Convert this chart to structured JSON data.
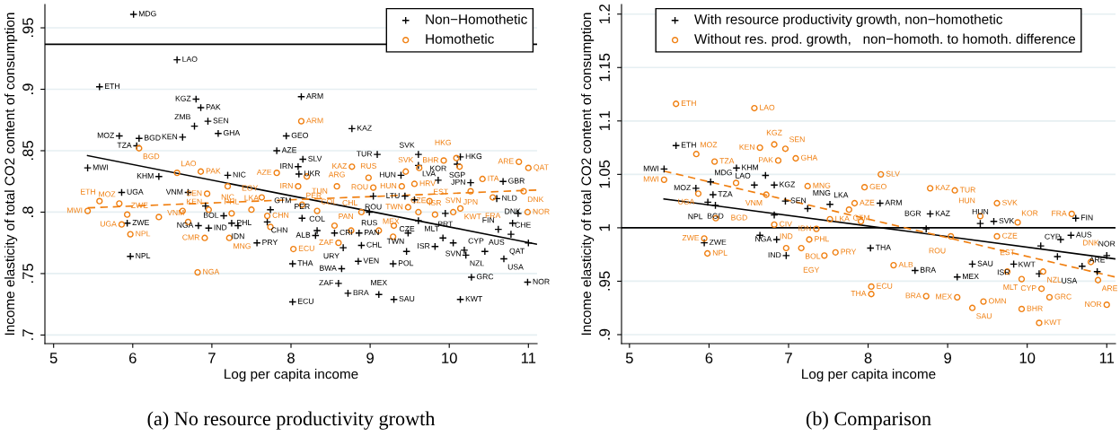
{
  "chart_data": [
    {
      "type": "scatter",
      "title": "(a) No resource productivity growth",
      "xlabel": "Log per capita income",
      "ylabel": "Income elasticity of total CO2 content of consumption",
      "xlim": [
        4.89,
        11.11
      ],
      "xticks": [
        5,
        6,
        7,
        8,
        9,
        10,
        11
      ],
      "ylim": [
        0.693,
        0.969
      ],
      "yticks": [
        {
          "value": 0.7,
          "label": ".7"
        },
        {
          "value": 0.75,
          "label": ".75"
        },
        {
          "value": 0.8,
          "label": ".8"
        },
        {
          "value": 0.85,
          "label": ".85"
        },
        {
          "value": 0.9,
          "label": ".9"
        },
        {
          "value": 0.95,
          "label": ".95"
        }
      ],
      "grid": "y",
      "legend": "top right",
      "ref_lines": [
        {
          "axis": "y",
          "value": 0.9366,
          "color": "#000000"
        }
      ],
      "series": [
        {
          "name": "Non−Homothetic",
          "marker": "cross",
          "color": "#000000",
          "x": [
            6.01,
            6.56,
            5.58,
            6.8,
            6.86,
            6.95,
            6.78,
            7.08,
            5.83,
            6.08,
            6.63,
            6.05,
            5.43,
            6.33,
            7.2,
            5.86,
            6.7,
            5.93,
            5.97,
            6.92,
            7.15,
            6.83,
            6.96,
            7.25,
            7.33,
            7.57,
            7.7,
            7.74,
            7.94,
            7.82,
            8.02,
            8.02,
            8.13,
            8.77,
            8.15,
            9.09,
            9.61,
            9.61,
            8.09,
            8.1,
            9.39,
            9.86,
            10.14,
            10.1,
            10.27,
            10.68,
            10.6,
            9.04,
            9.44,
            9.56,
            8.99,
            9.95,
            9.61,
            10.87,
            10.8,
            11.0,
            10.62,
            10.78,
            9.48,
            9.92,
            10.05,
            9.82,
            10.19,
            10.21,
            10.45,
            9.46,
            10.69,
            8.66,
            8.89,
            8.85,
            9.29,
            8.64,
            8.6,
            8.72,
            9.11,
            9.3,
            10.14,
            10.28,
            10.99,
            8.14,
            8.86,
            8.33,
            8.31,
            8.55
          ],
          "values": [
            0.961,
            0.924,
            0.902,
            0.892,
            0.885,
            0.874,
            0.87,
            0.864,
            0.862,
            0.86,
            0.861,
            0.854,
            0.836,
            0.829,
            0.83,
            0.816,
            0.816,
            0.791,
            0.764,
            0.805,
            0.797,
            0.789,
            0.787,
            0.791,
            0.789,
            0.775,
            0.792,
            0.802,
            0.862,
            0.85,
            0.727,
            0.758,
            0.894,
            0.868,
            0.843,
            0.847,
            0.847,
            0.838,
            0.837,
            0.831,
            0.83,
            0.826,
            0.845,
            0.839,
            0.824,
            0.825,
            0.811,
            0.813,
            0.813,
            0.81,
            0.8,
            0.799,
            0.793,
            0.799,
            0.791,
            0.775,
            0.786,
            0.782,
            0.783,
            0.779,
            0.775,
            0.772,
            0.769,
            0.765,
            0.768,
            0.768,
            0.762,
            0.771,
            0.773,
            0.76,
            0.758,
            0.754,
            0.742,
            0.734,
            0.733,
            0.729,
            0.729,
            0.747,
            0.743,
            0.795,
            0.783,
            0.785,
            0.781,
            0.783
          ],
          "value_labels": [
            "MDG",
            "LAO",
            "ETH",
            "KGZ",
            "PAK",
            "SEN",
            "ZMB",
            "GHA",
            "MOZ",
            "BGD",
            "KEN",
            "TZA",
            "MWI",
            "KHM",
            "NIC",
            "UGA",
            "VNM",
            "ZWE",
            "NPL",
            null,
            "BOL",
            "NGA",
            "IND",
            "PHL",
            "IDN",
            "PRY",
            "CHN",
            "GTM",
            "GEO",
            "AZE",
            "ECU",
            "THA",
            "ARM",
            "KAZ",
            "SLV",
            "TUR",
            "SVK",
            "LVA",
            "IRN",
            "UKR",
            "HUN",
            "KOR",
            "HKG",
            "SGP",
            "JPN",
            "GBR",
            "NLD",
            "ROU",
            "LTU",
            null,
            "RUS",
            "PRT",
            "CZE",
            null,
            "DNK",
            "QAT",
            "FIN",
            "CHE",
            "TWN",
            "MLT",
            "SVN",
            "ISR",
            "CYP",
            "NZL",
            "AUS",
            null,
            "USA",
            "URY",
            "CHL",
            "VEN",
            "POL",
            "BWA",
            "ZAF",
            "BRA",
            "MEX",
            "SAU",
            "KWT",
            "GRC",
            "NOR",
            "PER",
            "PAN",
            "COL",
            "ALB",
            "CRI"
          ]
        },
        {
          "name": "Homothetic",
          "marker": "circle",
          "color": "#f07f10",
          "x": [
            6.08,
            5.58,
            5.43,
            5.83,
            5.93,
            5.86,
            5.97,
            6.33,
            6.63,
            6.7,
            6.91,
            7.22,
            6.82,
            6.56,
            6.86,
            6.94,
            7.2,
            6.96,
            7.25,
            7.5,
            7.7,
            7.74,
            7.82,
            7.63,
            8.13,
            8.77,
            8.03,
            8.2,
            8.09,
            8.58,
            8.98,
            9.04,
            9.4,
            9.56,
            9.62,
            9.45,
            9.93,
            10.09,
            10.13,
            10.42,
            10.27,
            10.55,
            10.94,
            10.88,
            11.0,
            10.99,
            9.75,
            9.48,
            9.61,
            9.82,
            10.14,
            10.05,
            9.3,
            9.29,
            9.11,
            8.6,
            8.89,
            8.14,
            8.33,
            8.76,
            8.55
          ],
          "values": [
            0.852,
            0.809,
            0.801,
            0.807,
            0.798,
            0.79,
            0.782,
            0.796,
            0.801,
            0.792,
            0.779,
            0.779,
            0.751,
            0.832,
            0.833,
            0.815,
            0.821,
            0.802,
            0.799,
            0.802,
            0.797,
            0.788,
            0.832,
            0.812,
            0.874,
            0.837,
            0.77,
            0.829,
            0.821,
            0.821,
            0.828,
            0.82,
            0.821,
            0.823,
            0.836,
            0.833,
            0.842,
            0.844,
            0.837,
            0.827,
            0.817,
            0.812,
            0.817,
            0.841,
            0.836,
            0.8,
            0.809,
            0.804,
            0.8,
            0.798,
            0.803,
            0.8,
            0.789,
            0.78,
            0.785,
            0.775,
            0.8,
            0.806,
            0.801,
            0.785,
            0.789
          ],
          "value_labels": [
            "BGD",
            "ETH",
            "MWI",
            "MOZ",
            "ZWE",
            "UGA",
            "NPL",
            null,
            "KEN",
            "VNM",
            "CMR",
            "MNG",
            "NGA",
            "LAO",
            "PAK",
            "SEN",
            "NIC",
            null,
            "PHL",
            "LKA",
            "CHN",
            null,
            "AZE",
            "EGY",
            "ARM",
            "KAZ",
            "ECU",
            "TUN",
            "IRN",
            "ARG",
            "RUS",
            "ROU",
            "HUN",
            "HRV",
            null,
            "SVK",
            "BHR",
            "HKG",
            null,
            "ITA",
            "JPN",
            "FRA",
            "DNK",
            "ARE",
            "QAT",
            "NOR",
            "EST",
            "TWN",
            "CZE",
            "ISR",
            "KWT",
            "SVN",
            null,
            null,
            "MEX",
            "ZAF",
            "CHL",
            "PER",
            "COL",
            null,
            "PAN"
          ]
        },
        {
          "type": "line",
          "line_style": "solid",
          "color": "#000000",
          "x": [
            5.43,
            11.1
          ],
          "values": [
            0.846,
            0.774
          ]
        },
        {
          "type": "line",
          "line_style": "dashed",
          "color": "#f07f10",
          "x": [
            5.43,
            11.1
          ],
          "values": [
            0.8035,
            0.818
          ]
        }
      ]
    },
    {
      "type": "scatter",
      "title": "(b) Comparison",
      "xlabel": "Log per capita income",
      "ylabel": "Income elasticity of total CO2 content of consumption",
      "xlim": [
        4.9,
        11.11
      ],
      "xticks": [
        5,
        6,
        7,
        8,
        9,
        10,
        11
      ],
      "ylim": [
        0.8916,
        1.209
      ],
      "yticks": [
        {
          "value": 0.9,
          "label": ".9"
        },
        {
          "value": 0.95,
          "label": ".95"
        },
        1,
        1.05,
        1.1,
        1.15,
        1.2
      ],
      "grid": "y",
      "legend": "top",
      "ref_lines": [
        {
          "axis": "y",
          "value": 1,
          "color": "#000000"
        }
      ],
      "series": [
        {
          "name": "With resource productivity growth, non−homothetic",
          "marker": "cross",
          "color": "#000000",
          "x": [
            5.585,
            5.435,
            6.345,
            6.02,
            5.835,
            6.05,
            5.985,
            6.08,
            6.57,
            6.82,
            6.96,
            6.71,
            6.82,
            7.24,
            7.52,
            6.64,
            5.94,
            6.85,
            6.97,
            8.15,
            8.78,
            8.73,
            9.41,
            9.58,
            10.61,
            8.03,
            9.31,
            9.83,
            9.12,
            10.15,
            10.69,
            10.88,
            10.38,
            10.17,
            11.0,
            10.55,
            10.42,
            8.59
          ],
          "values": [
            1.077,
            1.055,
            1.056,
            1.043,
            1.037,
            1.031,
            1.024,
            1.021,
            1.04,
            1.04,
            1.025,
            1.049,
            1.012,
            1.018,
            1.022,
            0.993,
            0.986,
            0.989,
            0.974,
            1.023,
            1.013,
            0.999,
            1.004,
            1.006,
            1.009,
            0.981,
            0.966,
            0.966,
            0.954,
            0.957,
            0.964,
            0.959,
            0.973,
            0.983,
            0.974,
            0.993,
            0.989,
            0.96
          ],
          "value_labels": [
            "ETH",
            "MWI",
            "KHM",
            "MDG",
            "MOZ",
            "TZA",
            "NPL",
            "BGD",
            "LAO",
            "KGZ",
            "SEN",
            null,
            null,
            "MNG",
            "LKA",
            null,
            "ZWE",
            "NGA",
            "IND",
            "ARM",
            "KAZ",
            "BGR",
            "HUN",
            "SVK",
            "FIN",
            "THA",
            "SAU",
            "ISR",
            "MEX",
            "KWT",
            "USA",
            "ARE",
            null,
            "CYP",
            "NOR",
            "AUS",
            null,
            "BRA"
          ]
        },
        {
          "name": "Without res. prod. growth,   non−homoth. to homoth. difference",
          "marker": "circle",
          "color": "#f07f10",
          "x": [
            5.585,
            6.57,
            5.84,
            6.07,
            5.435,
            6.34,
            5.865,
            6.085,
            5.94,
            5.98,
            6.64,
            6.82,
            6.96,
            6.87,
            7.09,
            7.24,
            6.82,
            6.97,
            7.16,
            7.26,
            7.45,
            7.59,
            7.35,
            7.52,
            6.72,
            8.16,
            7.955,
            8.78,
            9.09,
            9.62,
            7.83,
            7.76,
            7.91,
            9.41,
            9.88,
            9.04,
            9.62,
            10.56,
            8.32,
            9.75,
            9.93,
            10.2,
            10.8,
            10.89,
            8.04,
            8.04,
            8.73,
            9.12,
            9.45,
            9.31,
            10.18,
            10.28,
            9.93,
            10.15,
            11.0
          ],
          "values": [
            1.116,
            1.112,
            1.069,
            1.062,
            1.045,
            1.042,
            1.032,
            1.009,
            0.99,
            0.976,
            1.075,
            1.078,
            1.074,
            1.063,
            1.065,
            1.039,
            1.003,
            0.981,
            0.981,
            0.989,
            0.974,
            0.977,
            0.999,
            1.008,
            1.031,
            1.05,
            1.038,
            1.037,
            1.035,
            1.023,
            1.023,
            1.017,
            1.006,
            1.011,
            1.005,
            0.992,
            0.992,
            1.013,
            0.965,
            0.959,
            0.952,
            0.959,
            0.968,
            0.951,
            0.945,
            0.938,
            0.936,
            0.935,
            0.931,
            0.925,
            0.943,
            0.935,
            0.924,
            0.911,
            0.928
          ],
          "value_labels": [
            "ETH",
            "LAO",
            "MOZ",
            "TZA",
            "MWI",
            null,
            "UGA",
            "BGD",
            "ZWE",
            "NPL",
            "KEN",
            "KGZ",
            "SEN",
            "PAK",
            "GHA",
            "MNG",
            "CIV",
            "IND",
            "BOL",
            "PHL",
            "EGY",
            "PRY",
            "IDN",
            "LKA",
            "VNM",
            "SLV",
            "GEO",
            "KAZ",
            "TUR",
            "SVK",
            "AZE",
            "GTM",
            null,
            "HUN",
            "KOR",
            "ROU",
            "CZE",
            "FRA",
            "ALB",
            "EST",
            "MLT",
            "NZL",
            "DNK",
            "ARE",
            "ECU",
            "THA",
            "BRA",
            "MEX",
            "OMN",
            "SAU",
            "CYP",
            "GRC",
            "BHR",
            "KWT",
            "NOR"
          ]
        },
        {
          "type": "line",
          "line_style": "solid",
          "color": "#000000",
          "x": [
            5.435,
            11.1
          ],
          "values": [
            1.027,
            0.971
          ]
        },
        {
          "type": "line",
          "line_style": "dashed",
          "color": "#f07f10",
          "x": [
            5.435,
            11.1
          ],
          "values": [
            1.053,
            0.954
          ]
        }
      ]
    }
  ]
}
